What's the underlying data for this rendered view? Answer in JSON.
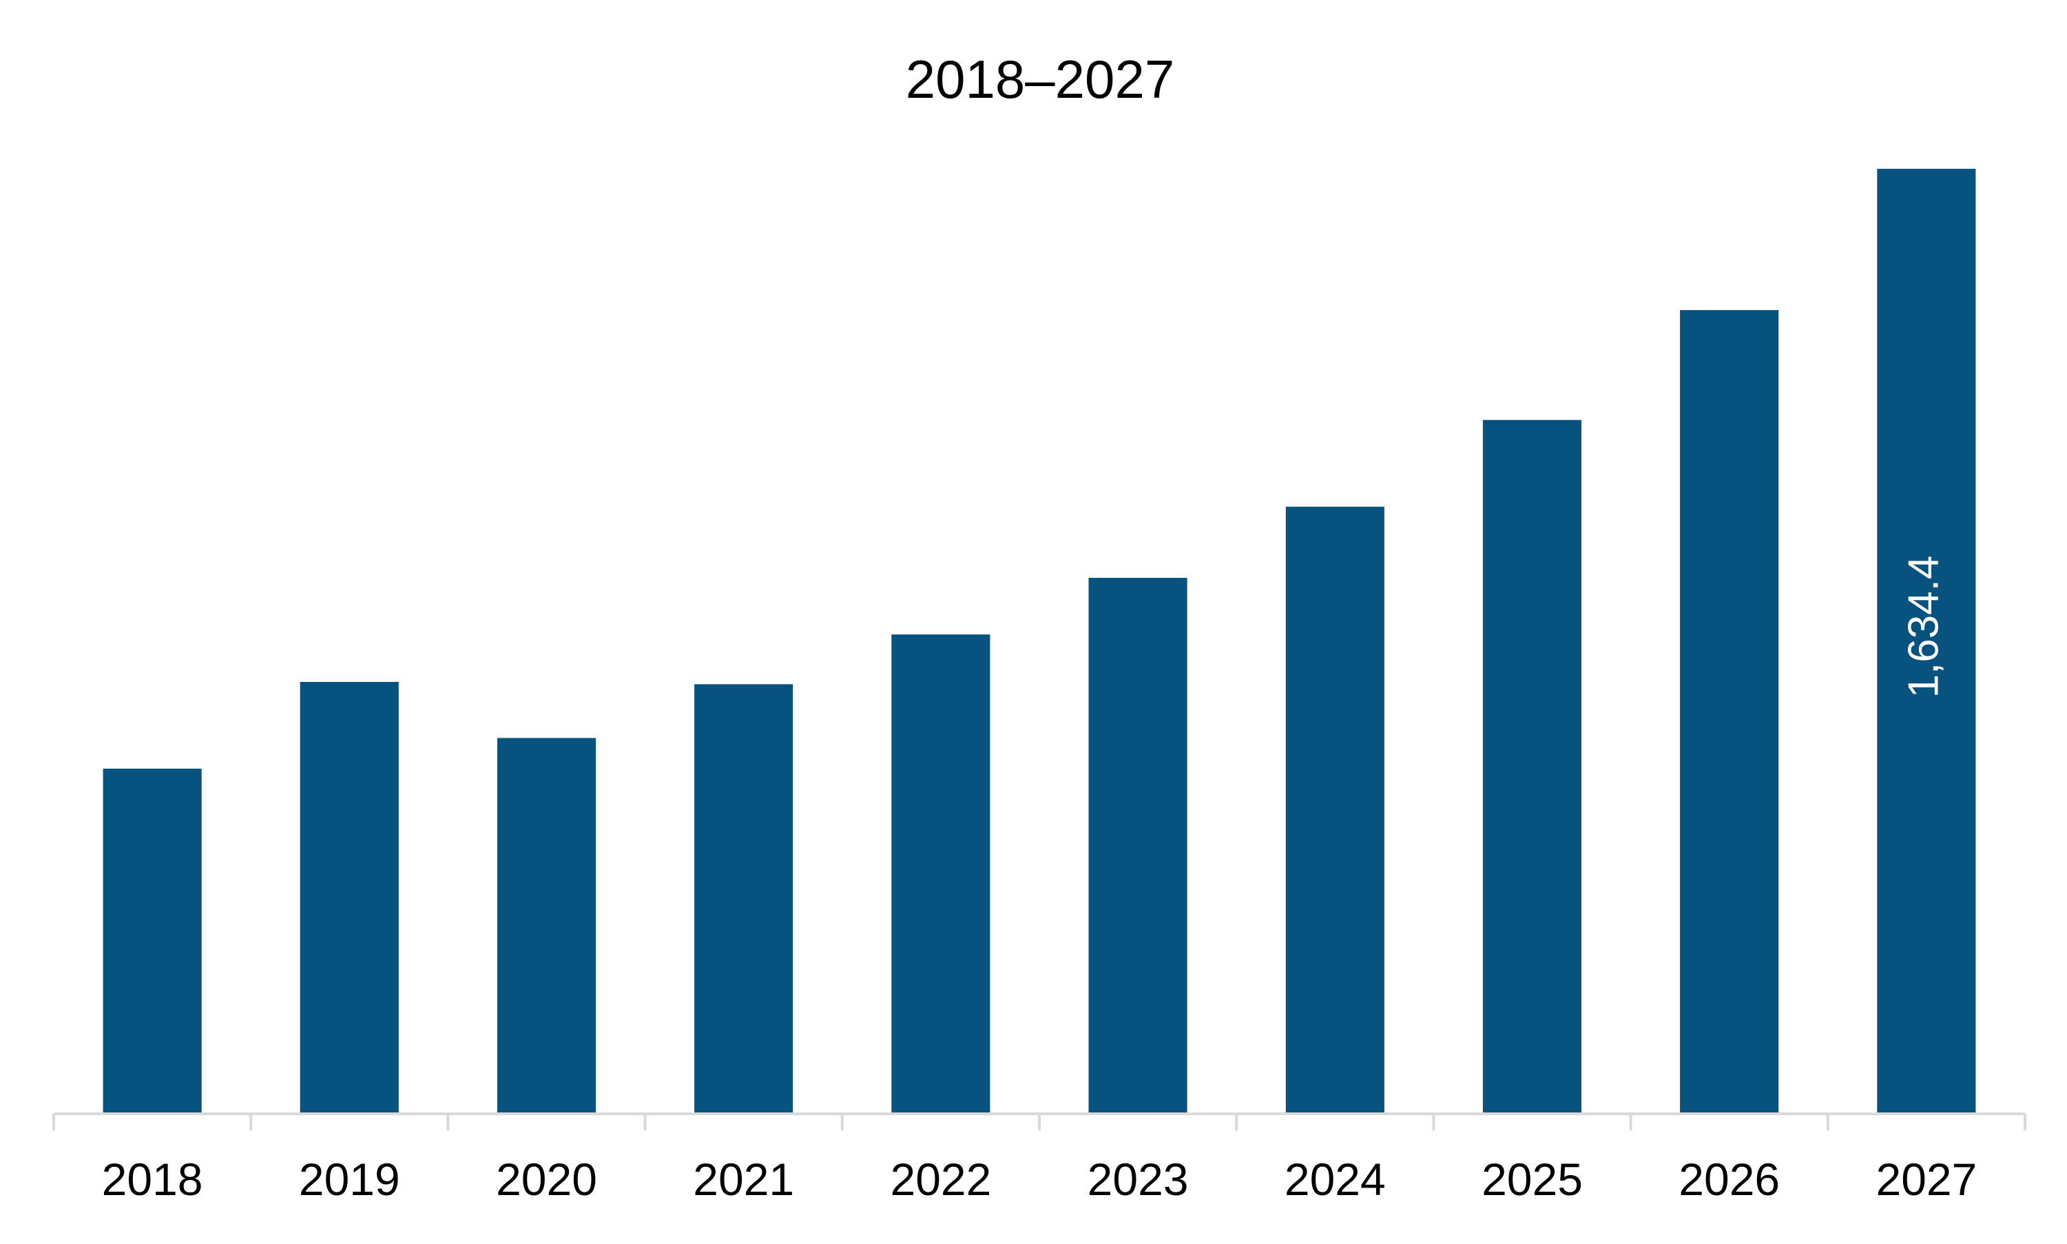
{
  "chart_data": {
    "type": "bar",
    "title": "2018–2027",
    "categories": [
      "2018",
      "2019",
      "2020",
      "2021",
      "2022",
      "2023",
      "2024",
      "2025",
      "2026",
      "2027"
    ],
    "values": [
      597,
      747,
      650,
      743,
      829,
      927,
      1050,
      1200,
      1390,
      1634.4
    ],
    "data_labels": [
      "",
      "",
      "",
      "",
      "",
      "",
      "",
      "",
      "",
      "1,634.4"
    ],
    "xlabel": "",
    "ylabel": "",
    "ylim": [
      0,
      1700
    ],
    "grid": false,
    "legend": "none",
    "bar_color": "#08527f",
    "axis_color": "#d9d9d9",
    "text_color": "#000000",
    "label_color": "#ffffff"
  }
}
